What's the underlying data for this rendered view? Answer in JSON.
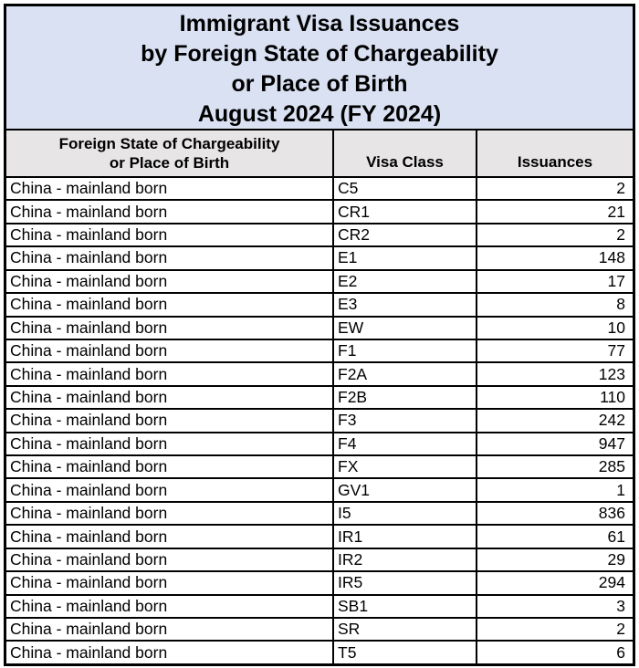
{
  "title": {
    "lines": [
      "Immigrant Visa Issuances",
      "by Foreign State of Chargeability",
      "or Place of Birth",
      "August 2024 (FY 2024)"
    ]
  },
  "table": {
    "header": {
      "col1_line1": "Foreign State of Chargeability",
      "col1_line2": "or Place of Birth",
      "col2": "Visa Class",
      "col3": "Issuances"
    },
    "rows": [
      {
        "state": "China - mainland born",
        "visa_class": "C5",
        "issuances": "2"
      },
      {
        "state": "China - mainland born",
        "visa_class": "CR1",
        "issuances": "21"
      },
      {
        "state": "China - mainland born",
        "visa_class": "CR2",
        "issuances": "2"
      },
      {
        "state": "China - mainland born",
        "visa_class": "E1",
        "issuances": "148"
      },
      {
        "state": "China - mainland born",
        "visa_class": "E2",
        "issuances": "17"
      },
      {
        "state": "China - mainland born",
        "visa_class": "E3",
        "issuances": "8"
      },
      {
        "state": "China - mainland born",
        "visa_class": "EW",
        "issuances": "10"
      },
      {
        "state": "China - mainland born",
        "visa_class": "F1",
        "issuances": "77"
      },
      {
        "state": "China - mainland born",
        "visa_class": "F2A",
        "issuances": "123"
      },
      {
        "state": "China - mainland born",
        "visa_class": "F2B",
        "issuances": "110"
      },
      {
        "state": "China - mainland born",
        "visa_class": "F3",
        "issuances": "242"
      },
      {
        "state": "China - mainland born",
        "visa_class": "F4",
        "issuances": "947"
      },
      {
        "state": "China - mainland born",
        "visa_class": "FX",
        "issuances": "285"
      },
      {
        "state": "China - mainland born",
        "visa_class": "GV1",
        "issuances": "1"
      },
      {
        "state": "China - mainland born",
        "visa_class": "I5",
        "issuances": "836"
      },
      {
        "state": "China - mainland born",
        "visa_class": "IR1",
        "issuances": "61"
      },
      {
        "state": "China - mainland born",
        "visa_class": "IR2",
        "issuances": "29"
      },
      {
        "state": "China - mainland born",
        "visa_class": "IR5",
        "issuances": "294"
      },
      {
        "state": "China - mainland born",
        "visa_class": "SB1",
        "issuances": "3"
      },
      {
        "state": "China - mainland born",
        "visa_class": "SR",
        "issuances": "2"
      },
      {
        "state": "China - mainland born",
        "visa_class": "T5",
        "issuances": "6"
      }
    ]
  },
  "colors": {
    "title_bg": "#d9e1f3",
    "header_bg": "#e7e5e5",
    "border": "#000000",
    "row_bg": "#ffffff"
  }
}
